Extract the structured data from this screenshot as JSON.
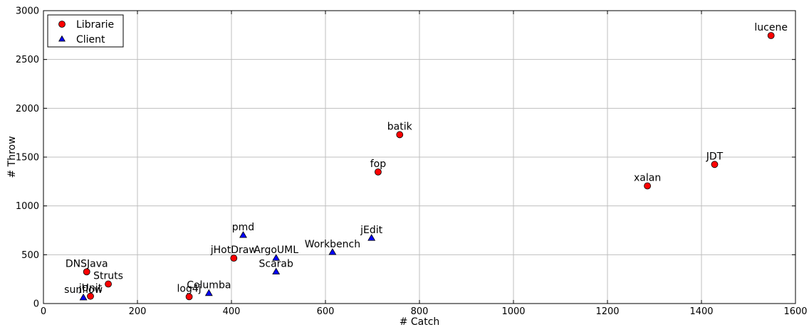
{
  "chart_data": {
    "type": "scatter",
    "xlabel": "# Catch",
    "ylabel": "# Throw",
    "xlim": [
      0,
      1600
    ],
    "ylim": [
      0,
      3000
    ],
    "xticks": [
      0,
      200,
      400,
      600,
      800,
      1000,
      1200,
      1400,
      1600
    ],
    "yticks": [
      0,
      500,
      1000,
      1500,
      2000,
      2500,
      3000
    ],
    "grid": true,
    "legend_position": "top-left",
    "series": [
      {
        "name": "Librarie",
        "marker": "circle",
        "color": "#ff0000",
        "points": [
          {
            "label": "lucene",
            "x": 1548,
            "y": 2745
          },
          {
            "label": "batik",
            "x": 758,
            "y": 1730
          },
          {
            "label": "fop",
            "x": 712,
            "y": 1348
          },
          {
            "label": "JDT",
            "x": 1428,
            "y": 1425
          },
          {
            "label": "xalan",
            "x": 1285,
            "y": 1205
          },
          {
            "label": "jHotDraw",
            "x": 405,
            "y": 465
          },
          {
            "label": "DNSJava",
            "x": 92,
            "y": 325
          },
          {
            "label": "Struts",
            "x": 138,
            "y": 200
          },
          {
            "label": "jUnit",
            "x": 100,
            "y": 75
          },
          {
            "label": "log4j",
            "x": 310,
            "y": 70
          }
        ]
      },
      {
        "name": "Client",
        "marker": "triangle",
        "color": "#0000ff",
        "points": [
          {
            "label": "pmd",
            "x": 425,
            "y": 700
          },
          {
            "label": "jEdit",
            "x": 698,
            "y": 670
          },
          {
            "label": "Workbench",
            "x": 615,
            "y": 525
          },
          {
            "label": "ArgoUML",
            "x": 495,
            "y": 465
          },
          {
            "label": "Scarab",
            "x": 495,
            "y": 325
          },
          {
            "label": "Columba",
            "x": 352,
            "y": 105
          },
          {
            "label": "sunflow",
            "x": 85,
            "y": 60
          }
        ]
      }
    ]
  }
}
